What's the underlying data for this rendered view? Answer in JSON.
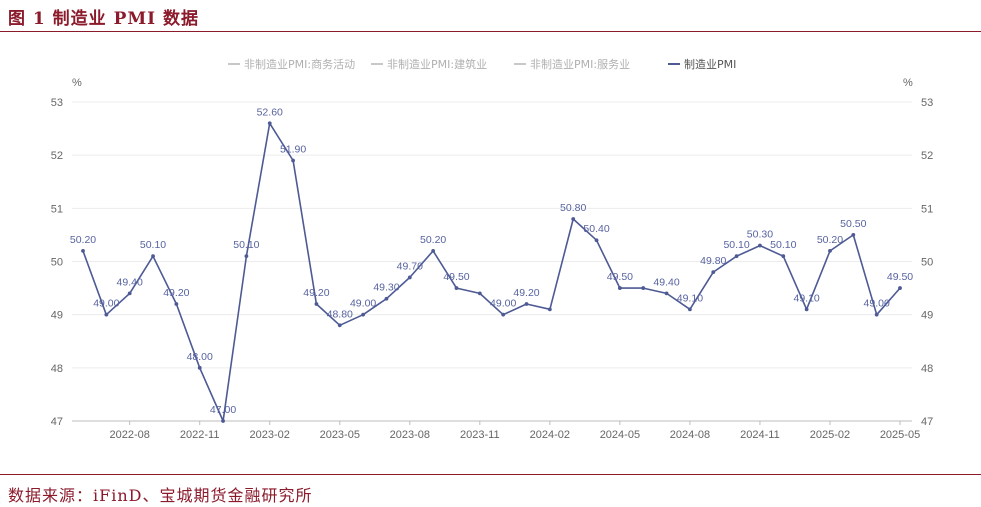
{
  "figure": {
    "title": "图 1 制造业 PMI 数据",
    "source": "数据来源：iFinD、宝城期货金融研究所"
  },
  "chart_data": {
    "type": "line",
    "left_unit": "%",
    "right_unit": "%",
    "ylim": [
      47,
      53
    ],
    "yticks": [
      "47",
      "48",
      "49",
      "50",
      "51",
      "52",
      "53"
    ],
    "grid": true,
    "legend_position": "top-center",
    "legend": [
      {
        "name": "非制造业PMI:商务活动",
        "color": "#c8c8c8",
        "active": false
      },
      {
        "name": "非制造业PMI:建筑业",
        "color": "#c8c8c8",
        "active": false
      },
      {
        "name": "非制造业PMI:服务业",
        "color": "#c8c8c8",
        "active": false
      },
      {
        "name": "制造业PMI",
        "color": "#4d5a94",
        "active": true
      }
    ],
    "xticks": [
      "2022-08",
      "2022-11",
      "2023-02",
      "2023-05",
      "2023-08",
      "2023-11",
      "2024-02",
      "2024-05",
      "2024-08",
      "2024-11",
      "2025-02",
      "2025-05"
    ],
    "series": [
      {
        "name": "制造业PMI",
        "color": "#4d5a94",
        "x": [
          "2022-06",
          "2022-07",
          "2022-08",
          "2022-09",
          "2022-10",
          "2022-11",
          "2022-12",
          "2023-01",
          "2023-02",
          "2023-03",
          "2023-04",
          "2023-05",
          "2023-06",
          "2023-07",
          "2023-08",
          "2023-09",
          "2023-10",
          "2023-11",
          "2023-12",
          "2024-01",
          "2024-02",
          "2024-03",
          "2024-04",
          "2024-05",
          "2024-06",
          "2024-07",
          "2024-08",
          "2024-09",
          "2024-10",
          "2024-11",
          "2024-12",
          "2025-01",
          "2025-02",
          "2025-03",
          "2025-04",
          "2025-05"
        ],
        "values": [
          50.2,
          49.0,
          49.4,
          50.1,
          49.2,
          48.0,
          47.0,
          50.1,
          52.6,
          51.9,
          49.2,
          48.8,
          49.0,
          49.3,
          49.7,
          50.2,
          49.5,
          49.4,
          49.0,
          49.2,
          49.1,
          50.8,
          50.4,
          49.5,
          49.5,
          49.4,
          49.1,
          49.8,
          50.1,
          50.3,
          50.1,
          49.1,
          50.2,
          50.5,
          49.0,
          49.5
        ],
        "labels": [
          "50.20",
          "49.00",
          "49.40",
          "50.10",
          "49.20",
          "48.00",
          "47.00",
          "50.10",
          "52.60",
          "51.90",
          "49.20",
          "48.80",
          "49.00",
          "49.30",
          "49.70",
          "50.20",
          "49.50",
          "",
          "49.00",
          "49.20",
          "",
          "50.80",
          "50.40",
          "49.50",
          "",
          "49.40",
          "49.10",
          "49.80",
          "50.10",
          "50.30",
          "50.10",
          "49.10",
          "50.20",
          "50.50",
          "49.00",
          "49.50"
        ]
      }
    ]
  }
}
